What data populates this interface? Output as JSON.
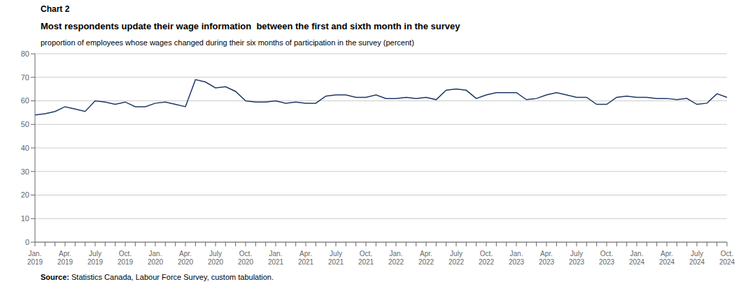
{
  "chart_data": {
    "type": "line",
    "title": "Most respondents update their wage information  between the first and sixth month in the survey",
    "subtitle": "proportion of employees whose wages changed during their six months of participation in the survey (percent)",
    "annotations": [
      "Chart 2",
      "Source: Statistics Canada, Labour Force Survey, custom tabulation."
    ],
    "categories": [
      "Jan.\n2019",
      null,
      null,
      "Apr.\n2019",
      null,
      null,
      "July\n2019",
      null,
      null,
      "Oct.\n2019",
      null,
      null,
      "Jan.\n2020",
      null,
      null,
      "Apr.\n2020",
      null,
      null,
      "July\n2020",
      null,
      null,
      "Oct.\n2020",
      null,
      null,
      "Jan.\n2021",
      null,
      null,
      "Apr.\n2021",
      null,
      null,
      "July\n2021",
      null,
      null,
      "Oct.\n2021",
      null,
      null,
      "Jan.\n2022",
      null,
      null,
      "Apr.\n2022",
      null,
      null,
      "July\n2022",
      null,
      null,
      "Oct.\n2022",
      null,
      null,
      "Jan.\n2023",
      null,
      null,
      "Apr.\n2023",
      null,
      null,
      "July\n2023",
      null,
      null,
      "Oct.\n2023",
      null,
      null,
      "Jan.\n2024",
      null,
      null,
      "Apr.\n2024",
      null,
      null,
      "July\n2024",
      null,
      null,
      "Oct.\n2024"
    ],
    "values": [
      54.0,
      54.5,
      55.5,
      57.5,
      56.5,
      55.5,
      60.0,
      59.5,
      58.5,
      59.5,
      57.5,
      57.5,
      59.0,
      59.5,
      58.5,
      57.5,
      69.0,
      68.0,
      65.5,
      66.0,
      64.0,
      60.0,
      59.5,
      59.5,
      60.0,
      59.0,
      59.5,
      59.0,
      59.0,
      62.0,
      62.5,
      62.5,
      61.5,
      61.5,
      62.5,
      61.0,
      61.0,
      61.5,
      61.0,
      61.5,
      60.5,
      64.5,
      65.0,
      64.5,
      61.0,
      62.5,
      63.5,
      63.5,
      63.5,
      60.5,
      61.0,
      62.5,
      63.5,
      62.5,
      61.5,
      61.5,
      58.5,
      58.5,
      61.5,
      62.0,
      61.5,
      61.5,
      61.0,
      61.0,
      60.5,
      61.0,
      58.5,
      59.0,
      63.0,
      61.5
    ],
    "color": "#1F3864",
    "ylim": [
      0,
      80
    ],
    "yticks": [
      0,
      10,
      20,
      30,
      40,
      50,
      60,
      70,
      80
    ],
    "grid": true
  }
}
